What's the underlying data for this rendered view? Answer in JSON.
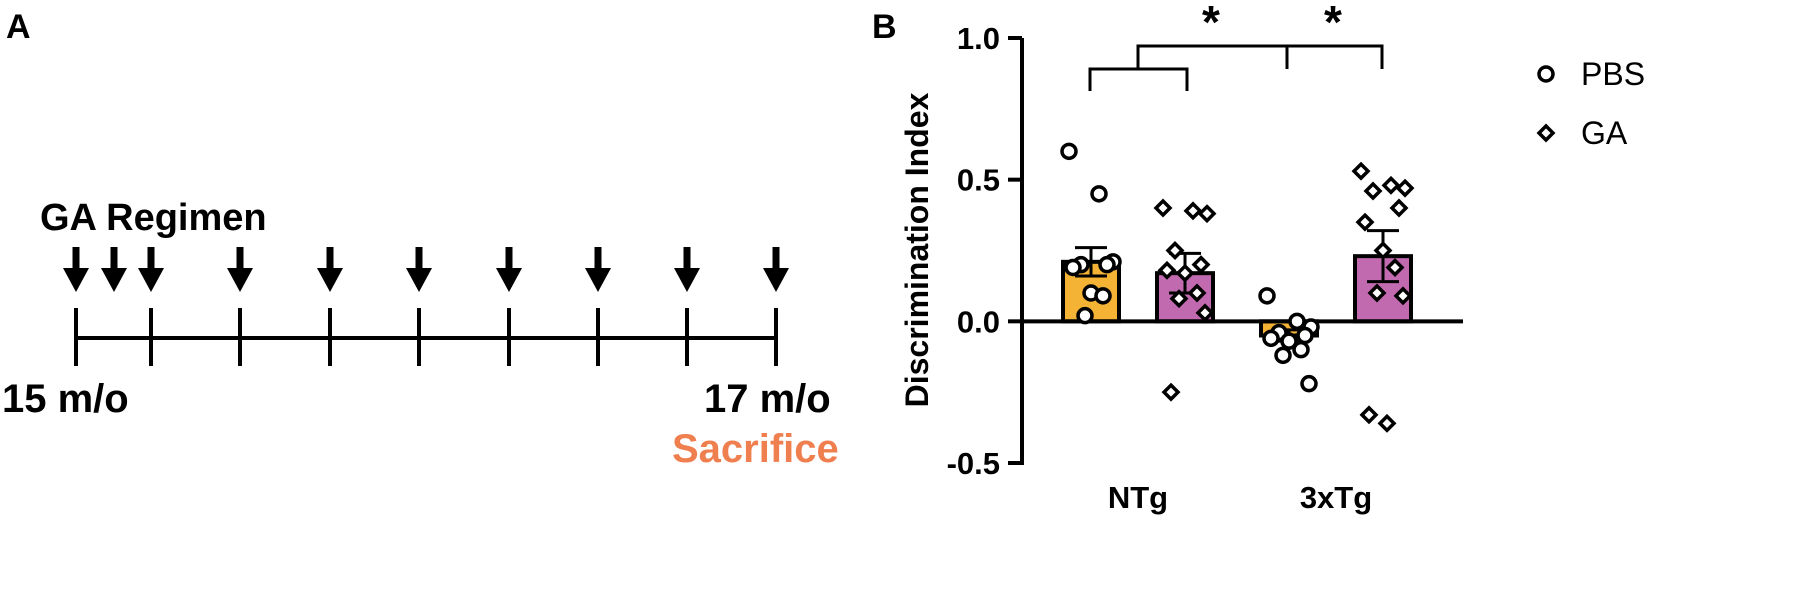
{
  "colors": {
    "pbs_bar": "#F5B335",
    "ga_bar": "#C26AB0",
    "sacrifice": "#F07F4F",
    "ink": "#000000"
  },
  "panel_a": {
    "label": "A",
    "regimen_label": "GA Regimen",
    "start_label": "15 m/o",
    "end_label": "17 m/o",
    "sacrifice_label": "Sacrifice",
    "injection_icon": "arrow-down-icon",
    "injection_count": 10
  },
  "panel_b": {
    "label": "B",
    "significance_left": "*",
    "significance_right": "*"
  },
  "chart_data": {
    "type": "bar",
    "categories": [
      "NTg",
      "3xTg"
    ],
    "ylabel": "Discrimination Index",
    "xlabel": "",
    "ylim": [
      -0.5,
      1.0
    ],
    "yticks": [
      -0.5,
      0.0,
      0.5,
      1.0
    ],
    "ytick_labels": [
      "-0.5",
      "0.0",
      "0.5",
      "1.0"
    ],
    "legend_position": "top-right",
    "series": [
      {
        "name": "PBS",
        "marker": "circle",
        "means": [
          0.21,
          -0.05
        ],
        "sem": [
          0.05,
          0.02
        ],
        "points": [
          [
            0.6,
            0.45,
            0.21,
            0.2,
            0.2,
            0.19,
            0.1,
            0.09,
            0.02
          ],
          [
            0.09,
            0.0,
            -0.02,
            -0.04,
            -0.05,
            -0.06,
            -0.07,
            -0.1,
            -0.12,
            -0.22
          ]
        ]
      },
      {
        "name": "GA",
        "marker": "diamond",
        "means": [
          0.17,
          0.23
        ],
        "sem": [
          0.07,
          0.09
        ],
        "points": [
          [
            0.4,
            0.39,
            0.38,
            0.25,
            0.2,
            0.18,
            0.17,
            0.1,
            0.08,
            0.03,
            -0.25
          ],
          [
            0.53,
            0.48,
            0.47,
            0.46,
            0.4,
            0.35,
            0.25,
            0.19,
            0.1,
            0.09,
            -0.33,
            -0.36
          ]
        ]
      }
    ]
  }
}
